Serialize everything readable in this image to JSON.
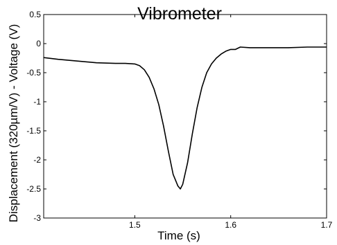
{
  "chart_data": {
    "type": "line",
    "title": "Vibrometer",
    "xlabel": "Time (s)",
    "ylabel": "Displacement (320µm/V) - Voltage (V)",
    "xlim": [
      1.405,
      1.7
    ],
    "ylim": [
      -3,
      0.5
    ],
    "grid": false,
    "x_ticks": [
      1.5,
      1.6,
      1.7
    ],
    "x_tick_labels": [
      "1.5",
      "1.6",
      "1.7"
    ],
    "y_ticks": [
      0.5,
      0,
      -0.5,
      -1,
      -1.5,
      -2,
      -2.5,
      -3
    ],
    "y_tick_labels": [
      "0.5",
      "0",
      "-0.5",
      "-1",
      "-1.5",
      "-2",
      "-2.5",
      "-3"
    ],
    "series": [
      {
        "color": "#000000",
        "x": [
          1.405,
          1.42,
          1.44,
          1.46,
          1.48,
          1.49,
          1.5,
          1.505,
          1.51,
          1.515,
          1.52,
          1.525,
          1.53,
          1.535,
          1.54,
          1.545,
          1.5475,
          1.55,
          1.555,
          1.56,
          1.565,
          1.57,
          1.575,
          1.58,
          1.585,
          1.59,
          1.595,
          1.6,
          1.605,
          1.61,
          1.62,
          1.64,
          1.66,
          1.68,
          1.7
        ],
        "y": [
          -0.24,
          -0.27,
          -0.3,
          -0.33,
          -0.34,
          -0.34,
          -0.35,
          -0.38,
          -0.45,
          -0.58,
          -0.78,
          -1.05,
          -1.42,
          -1.85,
          -2.25,
          -2.45,
          -2.5,
          -2.42,
          -2.05,
          -1.55,
          -1.1,
          -0.75,
          -0.5,
          -0.35,
          -0.25,
          -0.18,
          -0.13,
          -0.1,
          -0.1,
          -0.06,
          -0.07,
          -0.07,
          -0.07,
          -0.06,
          -0.06
        ]
      }
    ]
  }
}
